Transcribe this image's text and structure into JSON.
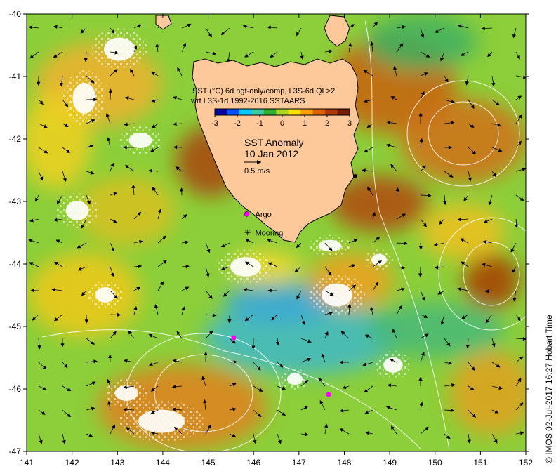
{
  "title": "SST Anomaly",
  "date": "10 Jan 2012",
  "vector_scale_label": "0.5 m/s",
  "colorbar": {
    "label_line1": "SST (°C) 6d ngt-only/comp, L3S-6d QL>2",
    "label_line2": "wrt L3S-1d 1992-2016 SSTAARS",
    "ticks": [
      "-3",
      "-2",
      "-1",
      "0",
      "1",
      "2",
      "3"
    ],
    "colors": [
      "#0000a0",
      "#0050ff",
      "#00c8ff",
      "#3cc8a0",
      "#30b030",
      "#a8d820",
      "#ffe000",
      "#ffa000",
      "#e06000",
      "#b03800",
      "#7a1a00"
    ]
  },
  "axes": {
    "x_ticks": [
      "141",
      "142",
      "143",
      "144",
      "145",
      "146",
      "147",
      "148",
      "149",
      "150",
      "151",
      "152"
    ],
    "y_ticks": [
      "-40",
      "-41",
      "-42",
      "-43",
      "-44",
      "-45",
      "-46",
      "-47"
    ],
    "x_range": [
      141,
      152
    ],
    "y_range": [
      -47,
      -40
    ]
  },
  "markers": [
    {
      "label": "Argo",
      "lon": 145.85,
      "lat": -43.2,
      "color": "#ff00ff"
    },
    {
      "label": "Mooring",
      "lon": 145.85,
      "lat": -43.5,
      "color": "#000000"
    }
  ],
  "credit": "©  IMOS 02-Jul-2017 16:27 Hobart Time"
}
